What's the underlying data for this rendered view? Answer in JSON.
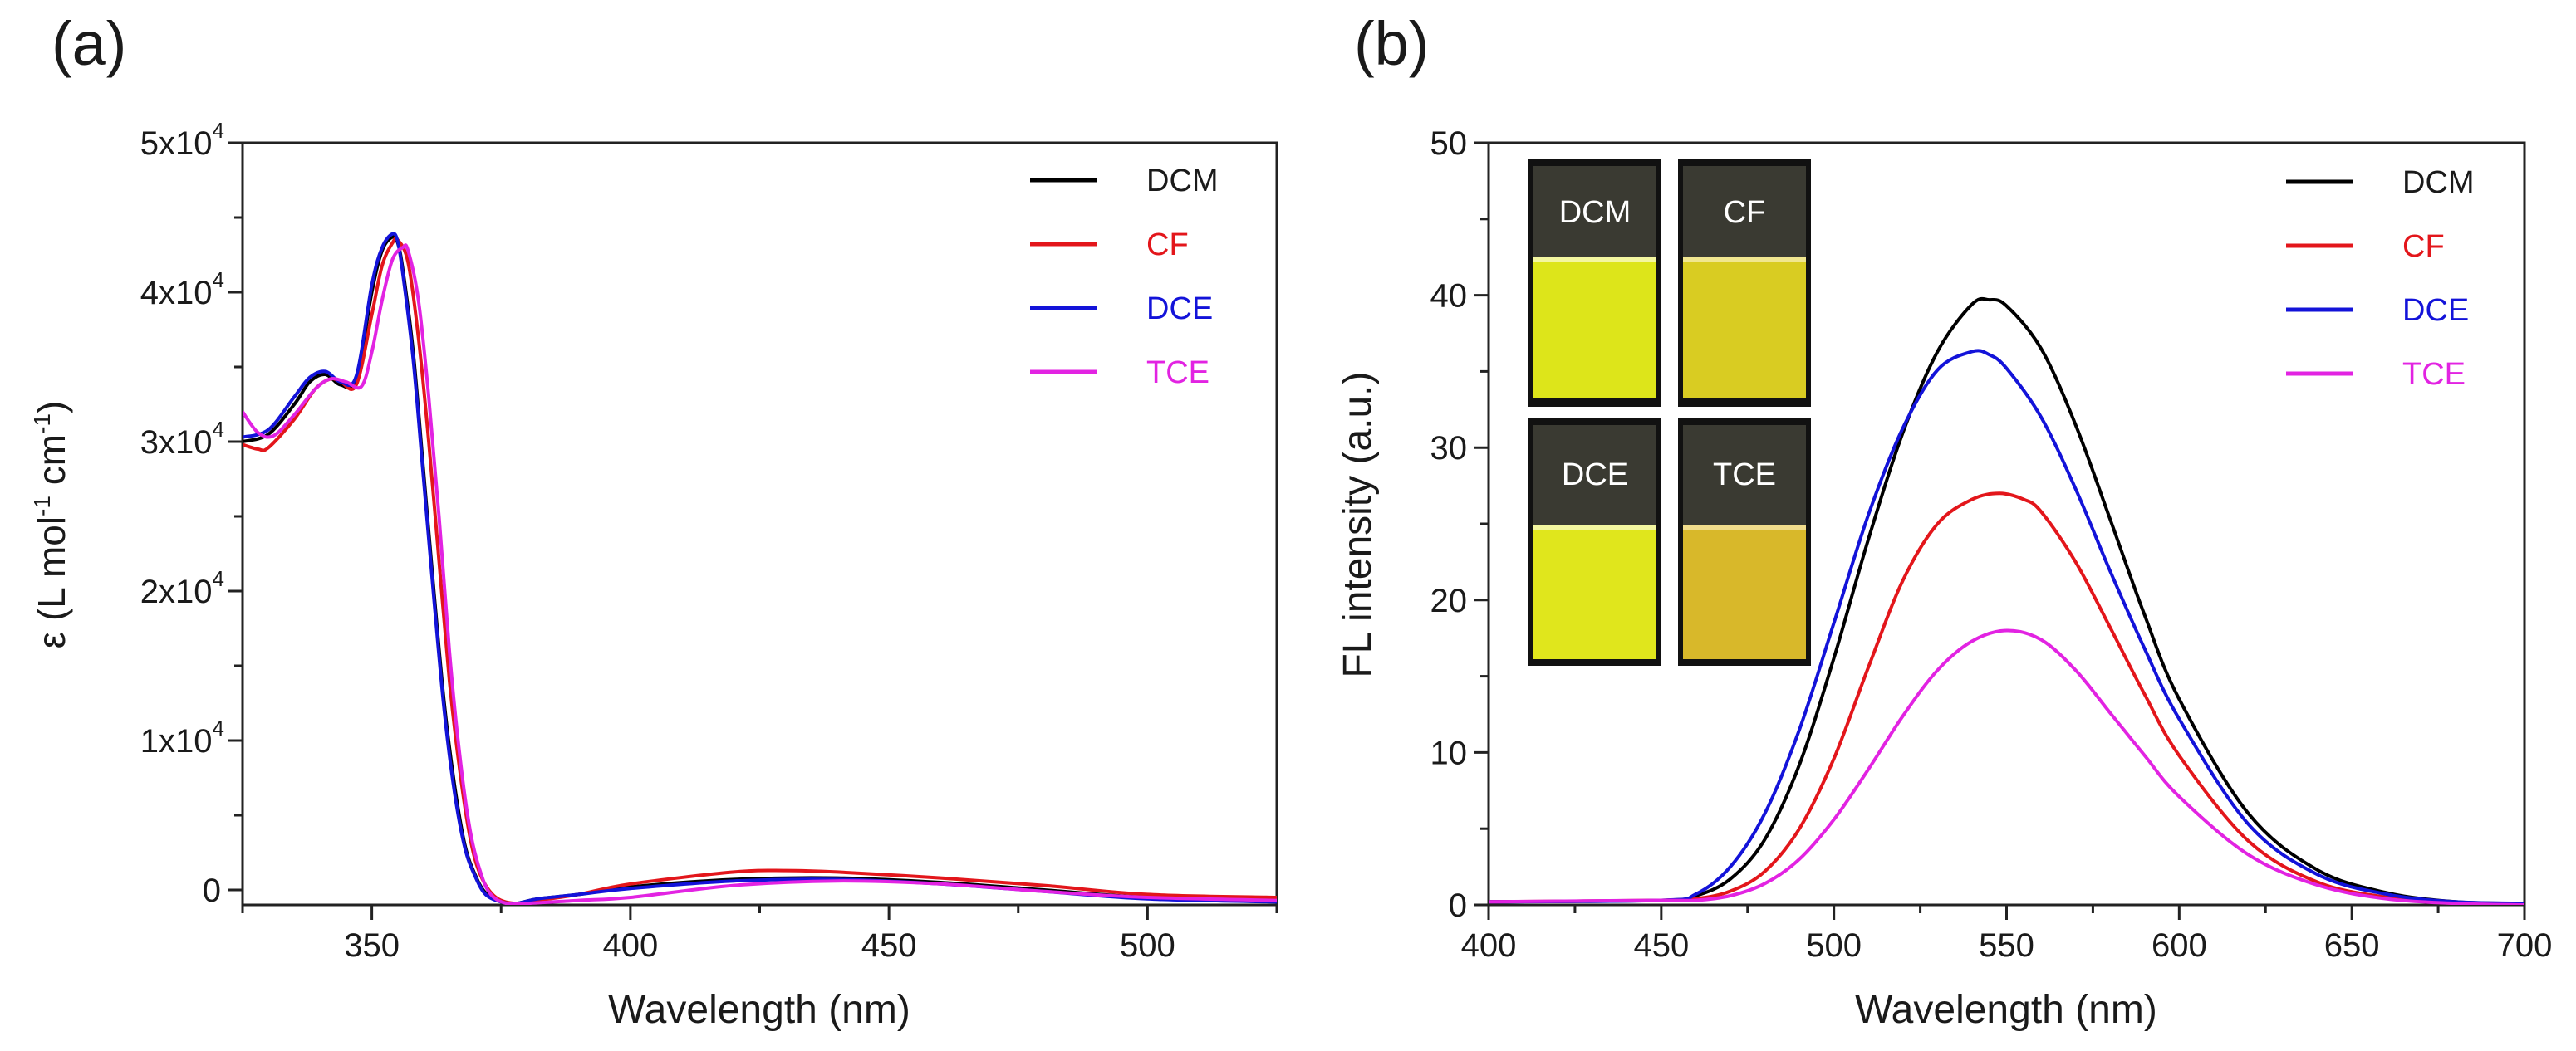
{
  "figure": {
    "panel_a_label": "(a)",
    "panel_b_label": "(b)"
  },
  "chart_data": [
    {
      "type": "line",
      "panel": "(a)",
      "xlabel": "Wavelength (nm)",
      "ylabel": "ε (L mol-1 cm-1)",
      "ylabel_parts": {
        "prefix": "ε (L mol",
        "exp1": "-1",
        "mid": " cm",
        "exp2": "-1",
        "suffix": ")"
      },
      "xlim": [
        325,
        525
      ],
      "ylim": [
        -1000,
        50000
      ],
      "xticks": [
        350,
        400,
        450,
        500
      ],
      "xtick_labels": [
        "350",
        "400",
        "450",
        "500"
      ],
      "yticks": [
        0,
        10000,
        20000,
        30000,
        40000,
        50000
      ],
      "ytick_labels": [
        {
          "base": "0",
          "exp": ""
        },
        {
          "base": "1x10",
          "exp": "4"
        },
        {
          "base": "2x10",
          "exp": "4"
        },
        {
          "base": "3x10",
          "exp": "4"
        },
        {
          "base": "4x10",
          "exp": "4"
        },
        {
          "base": "5x10",
          "exp": "4"
        }
      ],
      "legend_position": "top-right",
      "series": [
        {
          "name": "DCM",
          "color": "#000000",
          "x": [
            325,
            330,
            335,
            338,
            341,
            344,
            347,
            350,
            352,
            354,
            355,
            356,
            358,
            360,
            362,
            364,
            366,
            368,
            370,
            372,
            375,
            378,
            382,
            390,
            400,
            420,
            440,
            460,
            480,
            500,
            525
          ],
          "y": [
            30000,
            30500,
            32500,
            34000,
            34500,
            33800,
            34200,
            40000,
            42800,
            43700,
            43300,
            41500,
            36000,
            28000,
            20000,
            12500,
            7000,
            3000,
            1000,
            -200,
            -800,
            -900,
            -600,
            -300,
            200,
            700,
            800,
            500,
            0,
            -500,
            -700
          ]
        },
        {
          "name": "CF",
          "color": "#e3161b",
          "x": [
            325,
            328,
            330,
            335,
            339,
            342,
            344,
            347,
            350,
            352,
            354,
            355,
            357,
            359,
            361,
            363,
            365,
            367,
            369,
            371,
            374,
            378,
            382,
            390,
            400,
            420,
            430,
            440,
            460,
            480,
            500,
            525
          ],
          "y": [
            29800,
            29500,
            29600,
            31500,
            33500,
            34200,
            34000,
            33800,
            38500,
            41800,
            43300,
            43500,
            42000,
            37000,
            30000,
            22000,
            14000,
            8000,
            3500,
            1000,
            -500,
            -900,
            -700,
            -300,
            400,
            1200,
            1300,
            1200,
            800,
            300,
            -300,
            -500
          ]
        },
        {
          "name": "DCE",
          "color": "#1313d9",
          "x": [
            325,
            330,
            335,
            338,
            341,
            344,
            347,
            350,
            352,
            354,
            355,
            356,
            358,
            360,
            362,
            364,
            366,
            368,
            370,
            372,
            375,
            378,
            382,
            390,
            400,
            420,
            440,
            460,
            480,
            500,
            525
          ],
          "y": [
            30300,
            30800,
            33000,
            34300,
            34700,
            34000,
            34400,
            40500,
            43000,
            43900,
            43400,
            41200,
            35500,
            27500,
            19500,
            12000,
            6500,
            2800,
            900,
            -300,
            -800,
            -900,
            -600,
            -300,
            100,
            600,
            700,
            400,
            -100,
            -600,
            -800
          ]
        },
        {
          "name": "TCE",
          "color": "#e223e2",
          "x": [
            325,
            328,
            331,
            335,
            339,
            342,
            345,
            348,
            350,
            352,
            354,
            356,
            357,
            359,
            361,
            363,
            365,
            367,
            369,
            371,
            373,
            376,
            380,
            390,
            400,
            420,
            440,
            460,
            480,
            500,
            525
          ],
          "y": [
            32000,
            30600,
            30400,
            31800,
            33500,
            34200,
            34000,
            33700,
            36000,
            39500,
            42200,
            43000,
            42800,
            39500,
            33000,
            25000,
            16000,
            9000,
            4000,
            1200,
            -300,
            -900,
            -900,
            -700,
            -500,
            300,
            600,
            400,
            -100,
            -500,
            -700
          ]
        }
      ]
    },
    {
      "type": "line",
      "panel": "(b)",
      "xlabel": "Wavelength (nm)",
      "ylabel": "FL intensity (a.u.)",
      "xlim": [
        400,
        700
      ],
      "ylim": [
        0,
        50
      ],
      "xticks": [
        400,
        450,
        500,
        550,
        600,
        650,
        700
      ],
      "xtick_labels": [
        "400",
        "450",
        "500",
        "550",
        "600",
        "650",
        "700"
      ],
      "yticks": [
        0,
        10,
        20,
        30,
        40,
        50
      ],
      "ytick_labels": [
        "0",
        "10",
        "20",
        "30",
        "40",
        "50"
      ],
      "legend_position": "top-right",
      "inset": {
        "description_labels": [
          "DCM",
          "CF",
          "DCE",
          "TCE"
        ],
        "liquid_colors": [
          "#dde51a",
          "#d9cc22",
          "#e0e61c",
          "#d8b82a"
        ]
      },
      "series": [
        {
          "name": "DCM",
          "color": "#000000",
          "x": [
            400,
            450,
            460,
            470,
            480,
            490,
            500,
            510,
            520,
            530,
            540,
            545,
            550,
            560,
            570,
            580,
            590,
            600,
            620,
            640,
            660,
            680,
            700
          ],
          "y": [
            0.2,
            0.3,
            0.6,
            1.7,
            4.3,
            9.2,
            16.2,
            24.0,
            31.0,
            36.3,
            39.4,
            39.7,
            39.3,
            36.5,
            31.5,
            25.3,
            19.0,
            13.5,
            6.0,
            2.3,
            0.8,
            0.2,
            0.1
          ]
        },
        {
          "name": "CF",
          "color": "#e3161b",
          "x": [
            400,
            450,
            460,
            470,
            480,
            490,
            500,
            510,
            520,
            530,
            540,
            548,
            555,
            560,
            570,
            580,
            590,
            600,
            620,
            640,
            660,
            680,
            700
          ],
          "y": [
            0.2,
            0.3,
            0.4,
            0.9,
            2.2,
            5.0,
            9.6,
            15.6,
            21.3,
            25.0,
            26.6,
            27.0,
            26.6,
            25.8,
            22.5,
            18.2,
            13.8,
            9.8,
            4.2,
            1.5,
            0.5,
            0.1,
            0.0
          ]
        },
        {
          "name": "DCE",
          "color": "#1313d9",
          "x": [
            400,
            450,
            460,
            470,
            480,
            490,
            500,
            510,
            520,
            530,
            540,
            545,
            550,
            560,
            570,
            580,
            590,
            600,
            620,
            640,
            660,
            680,
            700
          ],
          "y": [
            0.2,
            0.3,
            0.7,
            2.5,
            6.0,
            11.5,
            18.5,
            25.6,
            31.3,
            35.1,
            36.3,
            36.1,
            35.2,
            32.0,
            27.3,
            21.9,
            16.8,
            12.2,
            5.3,
            2.0,
            0.7,
            0.2,
            0.1
          ]
        },
        {
          "name": "TCE",
          "color": "#e223e2",
          "x": [
            400,
            450,
            460,
            470,
            480,
            490,
            500,
            510,
            520,
            530,
            540,
            550,
            560,
            570,
            580,
            590,
            600,
            620,
            640,
            660,
            680,
            700
          ],
          "y": [
            0.2,
            0.3,
            0.3,
            0.6,
            1.4,
            3.0,
            5.6,
            8.9,
            12.4,
            15.4,
            17.3,
            18.0,
            17.4,
            15.4,
            12.6,
            9.8,
            7.1,
            3.3,
            1.3,
            0.4,
            0.1,
            0.0
          ]
        }
      ]
    }
  ]
}
